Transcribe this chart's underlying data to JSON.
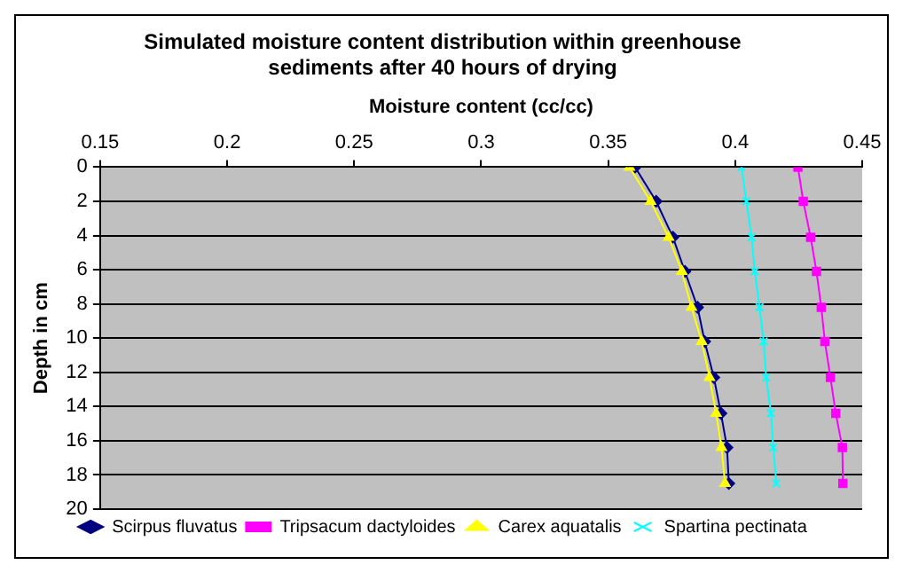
{
  "chart_data": {
    "type": "line",
    "title": "Simulated moisture content distribution within greenhouse sediments after 40 hours of drying",
    "xlabel": "Moisture content (cc/cc)",
    "ylabel": "Depth in cm",
    "xlim": [
      0.15,
      0.45
    ],
    "xticks": [
      0.15,
      0.2,
      0.25,
      0.3,
      0.35,
      0.4,
      0.45
    ],
    "ylim": [
      20,
      0
    ],
    "yticks": [
      0,
      2,
      4,
      6,
      8,
      10,
      12,
      14,
      16,
      18,
      20
    ],
    "grid": "y",
    "legend": "bottom",
    "series": [
      {
        "name": "Scirpus fluvatus",
        "color": "#000080",
        "marker": "diamond",
        "x": [
          0.3606,
          0.3689,
          0.3755,
          0.3802,
          0.3852,
          0.388,
          0.3916,
          0.3944,
          0.3968,
          0.3975
        ],
        "values": [
          0,
          2,
          4.1,
          6.1,
          8.2,
          10.2,
          12.3,
          14.4,
          16.4,
          18.5
        ]
      },
      {
        "name": "Tripsacum dactyloides",
        "color": "#ff00ff",
        "marker": "square",
        "x": [
          0.4247,
          0.4268,
          0.4297,
          0.432,
          0.4339,
          0.4353,
          0.4375,
          0.4396,
          0.4422,
          0.4424
        ],
        "values": [
          0,
          2,
          4.1,
          6.1,
          8.2,
          10.2,
          12.3,
          14.4,
          16.4,
          18.5
        ]
      },
      {
        "name": "Carex aquatalis",
        "color": "#ffff00",
        "marker": "triangle",
        "x": [
          0.3584,
          0.3667,
          0.3738,
          0.379,
          0.3828,
          0.3868,
          0.3899,
          0.3925,
          0.3946,
          0.396
        ],
        "values": [
          0,
          2,
          4.1,
          6.1,
          8.2,
          10.2,
          12.3,
          14.4,
          16.4,
          18.5
        ]
      },
      {
        "name": "Spartina pectinata",
        "color": "#00ffff",
        "marker": "cross",
        "x": [
          0.4025,
          0.4044,
          0.4065,
          0.4077,
          0.4096,
          0.4112,
          0.4122,
          0.4141,
          0.415,
          0.4162
        ],
        "values": [
          0,
          2,
          4.1,
          6.1,
          8.2,
          10.2,
          12.3,
          14.4,
          16.4,
          18.5
        ]
      }
    ]
  }
}
